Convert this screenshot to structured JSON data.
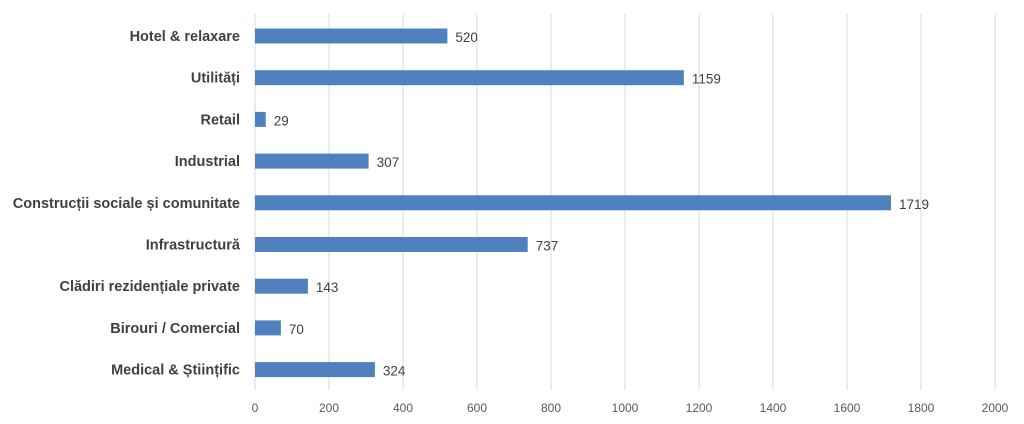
{
  "chart_data": {
    "type": "bar",
    "orientation": "horizontal",
    "categories": [
      "Hotel & relaxare",
      "Utilități",
      "Retail",
      "Industrial",
      "Construcții sociale și comunitate",
      "Infrastructură",
      "Clădiri rezidențiale private",
      "Birouri / Comercial",
      "Medical & Științific"
    ],
    "values": [
      520,
      1159,
      29,
      307,
      1719,
      737,
      143,
      70,
      324
    ],
    "value_labels": [
      "520",
      "1159",
      "29",
      "307",
      "1719",
      "737",
      "143",
      "70",
      "324"
    ],
    "xlim": [
      0,
      2000
    ],
    "x_ticks": [
      "0",
      "200",
      "400",
      "600",
      "800",
      "1000",
      "1200",
      "1400",
      "1600",
      "1800",
      "2000"
    ],
    "grid": "vertical",
    "legend": "none",
    "colors": {
      "bar": "#4e81bd",
      "grid": "#d9d9d9",
      "text": "#404040"
    }
  }
}
